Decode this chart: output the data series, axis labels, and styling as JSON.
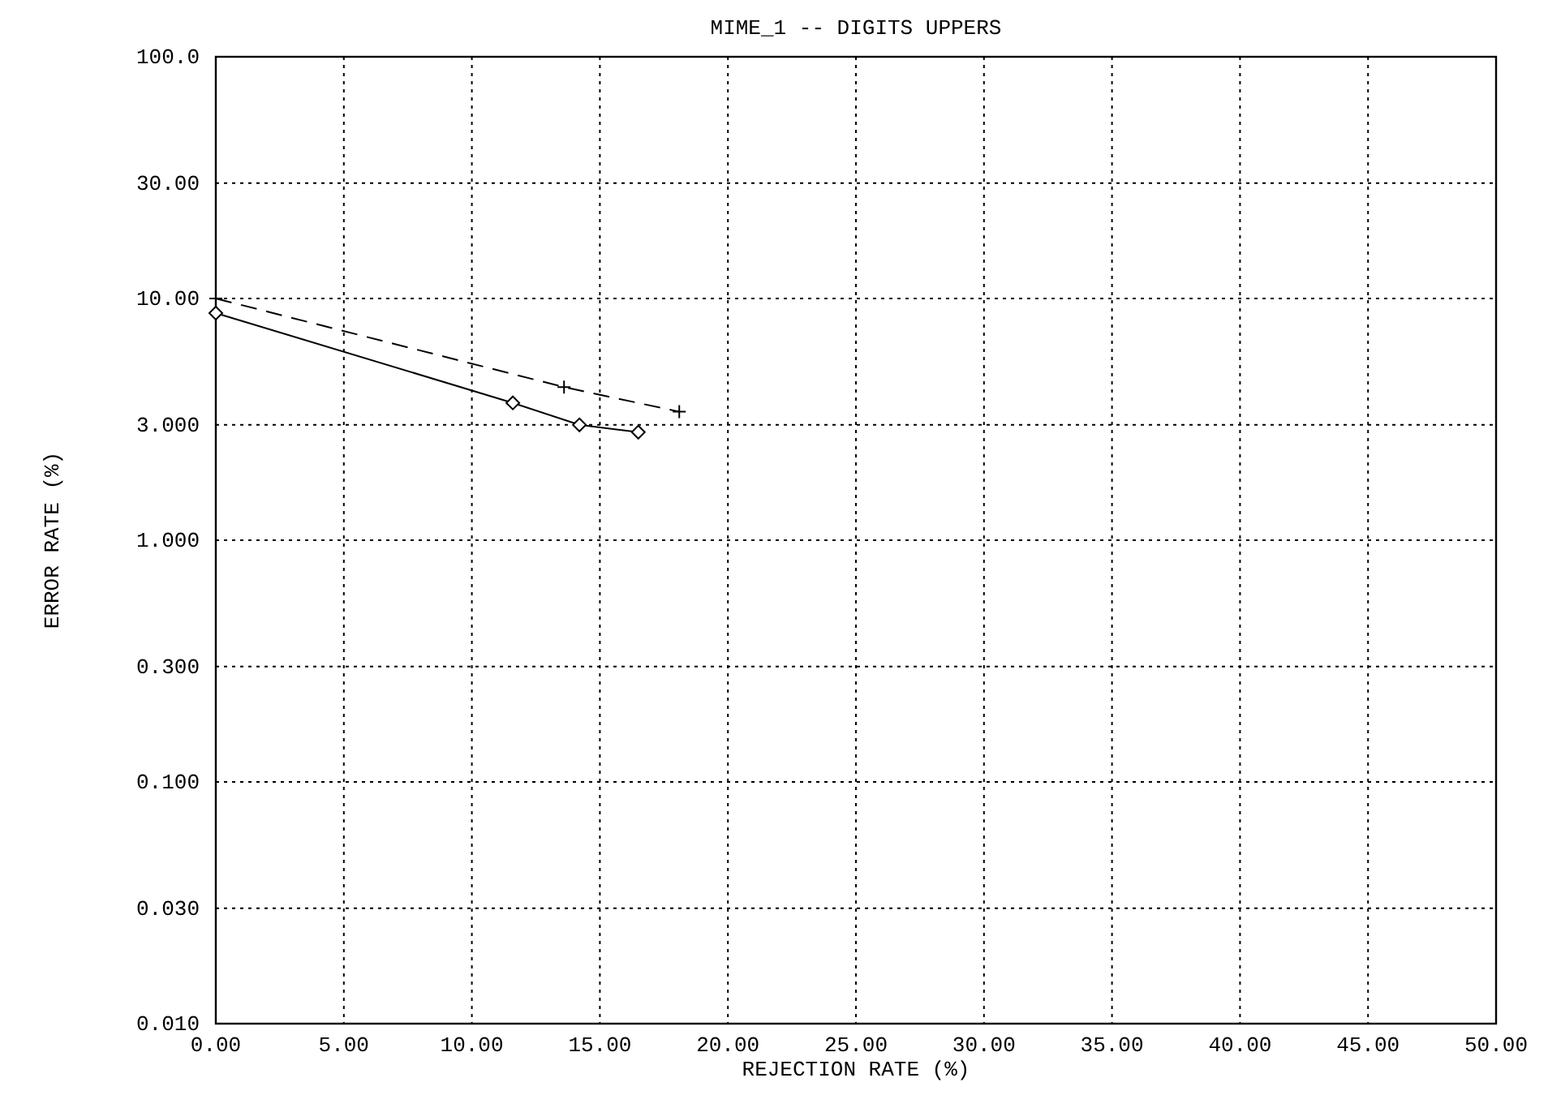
{
  "chart_data": {
    "type": "line",
    "title": "MIME_1 -- DIGITS UPPERS",
    "xlabel": "REJECTION RATE (%)",
    "ylabel": "ERROR RATE (%)",
    "log": "y",
    "grid": true,
    "xlim": [
      0,
      50
    ],
    "xticks": [
      {
        "value": 0,
        "label": "0.00"
      },
      {
        "value": 5,
        "label": "5.00"
      },
      {
        "value": 10,
        "label": "10.00"
      },
      {
        "value": 15,
        "label": "15.00"
      },
      {
        "value": 20,
        "label": "20.00"
      },
      {
        "value": 25,
        "label": "25.00"
      },
      {
        "value": 30,
        "label": "30.00"
      },
      {
        "value": 35,
        "label": "35.00"
      },
      {
        "value": 40,
        "label": "40.00"
      },
      {
        "value": 45,
        "label": "45.00"
      },
      {
        "value": 50,
        "label": "50.00"
      }
    ],
    "ylim": [
      0.01,
      100
    ],
    "yticks": [
      {
        "value": 0.01,
        "label": "0.010"
      },
      {
        "value": 0.03,
        "label": "0.030"
      },
      {
        "value": 0.1,
        "label": "0.100"
      },
      {
        "value": 0.3,
        "label": "0.300"
      },
      {
        "value": 1,
        "label": "1.000"
      },
      {
        "value": 3,
        "label": "3.000"
      },
      {
        "value": 10,
        "label": "10.00"
      },
      {
        "value": 30,
        "label": "30.00"
      },
      {
        "value": 100,
        "label": "100.0"
      }
    ],
    "series": [
      {
        "color": "#000000",
        "marker": "diamond",
        "line_style": "solid",
        "x": [
          0,
          11.6,
          14.2,
          16.5
        ],
        "values": [
          8.7,
          3.7,
          3.0,
          2.8
        ]
      },
      {
        "color": "#000000",
        "marker": "cross",
        "line_style": "dashed",
        "x": [
          0,
          13.6,
          18.1
        ],
        "values": [
          10,
          4.3,
          3.4
        ]
      }
    ]
  }
}
